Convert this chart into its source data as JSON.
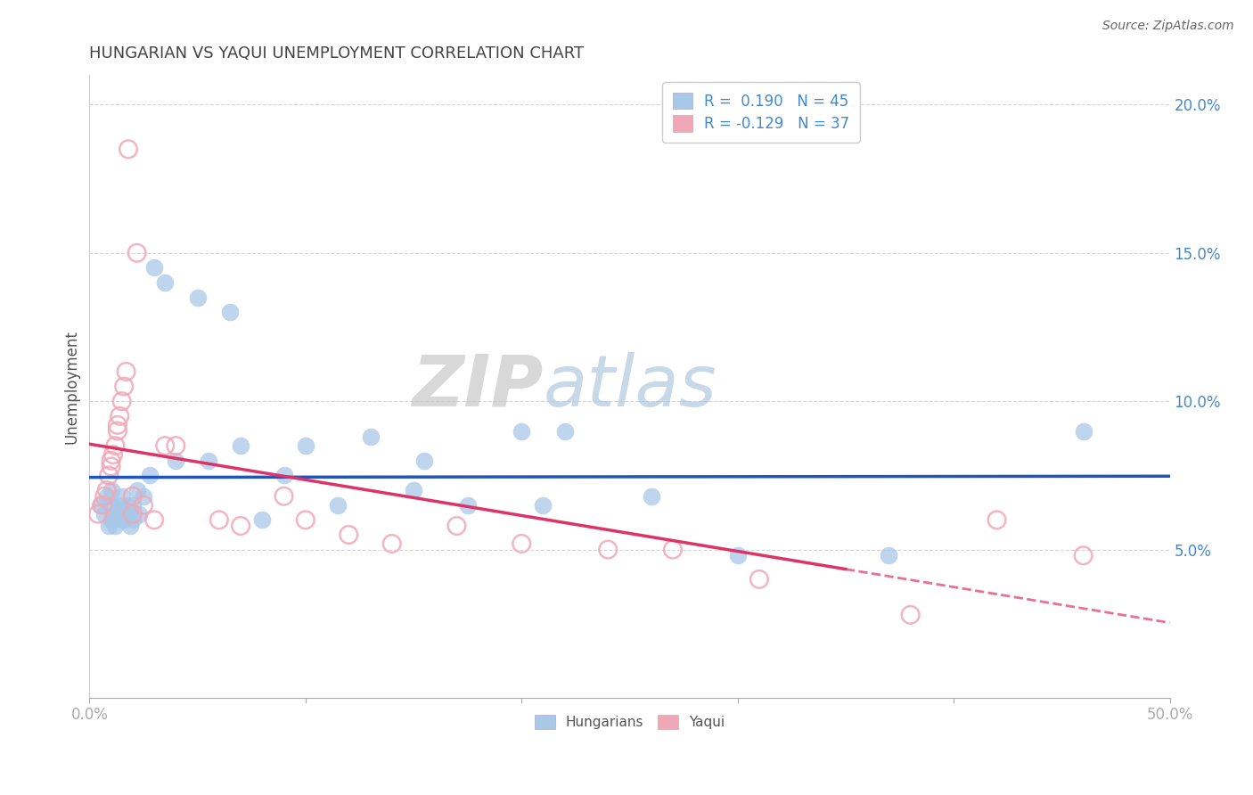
{
  "title": "HUNGARIAN VS YAQUI UNEMPLOYMENT CORRELATION CHART",
  "source": "Source: ZipAtlas.com",
  "ylabel": "Unemployment",
  "xlim": [
    0.0,
    0.5
  ],
  "ylim": [
    0.0,
    0.21
  ],
  "yticks": [
    0.05,
    0.1,
    0.15,
    0.2
  ],
  "ytick_labels": [
    "5.0%",
    "10.0%",
    "15.0%",
    "20.0%"
  ],
  "xticks": [
    0.0,
    0.1,
    0.2,
    0.3,
    0.4,
    0.5
  ],
  "xtick_labels": [
    "0.0%",
    "",
    "",
    "",
    "",
    "50.0%"
  ],
  "hungarian_color": "#a8c8e8",
  "yaqui_color": "#f0a8b8",
  "hungarian_line_color": "#2255bb",
  "yaqui_line_color": "#dd3366",
  "background_color": "#ffffff",
  "grid_color": "#cccccc",
  "blue_r": 0.19,
  "blue_n": 45,
  "pink_r": -0.129,
  "pink_n": 37,
  "hungarian_x": [
    0.005,
    0.007,
    0.008,
    0.009,
    0.01,
    0.01,
    0.01,
    0.011,
    0.012,
    0.013,
    0.014,
    0.015,
    0.015,
    0.016,
    0.017,
    0.018,
    0.019,
    0.02,
    0.02,
    0.022,
    0.023,
    0.025,
    0.028,
    0.03,
    0.035,
    0.04,
    0.05,
    0.055,
    0.065,
    0.07,
    0.08,
    0.09,
    0.1,
    0.115,
    0.13,
    0.15,
    0.155,
    0.175,
    0.2,
    0.21,
    0.22,
    0.26,
    0.3,
    0.37,
    0.46
  ],
  "hungarian_y": [
    0.065,
    0.062,
    0.068,
    0.058,
    0.06,
    0.065,
    0.07,
    0.06,
    0.058,
    0.063,
    0.065,
    0.06,
    0.068,
    0.06,
    0.062,
    0.065,
    0.058,
    0.06,
    0.065,
    0.07,
    0.062,
    0.068,
    0.075,
    0.145,
    0.14,
    0.08,
    0.135,
    0.08,
    0.13,
    0.085,
    0.06,
    0.075,
    0.085,
    0.065,
    0.088,
    0.07,
    0.08,
    0.065,
    0.09,
    0.065,
    0.09,
    0.068,
    0.048,
    0.048,
    0.09
  ],
  "yaqui_x": [
    0.004,
    0.006,
    0.007,
    0.008,
    0.009,
    0.01,
    0.01,
    0.011,
    0.012,
    0.013,
    0.013,
    0.014,
    0.015,
    0.016,
    0.017,
    0.018,
    0.02,
    0.02,
    0.022,
    0.025,
    0.03,
    0.035,
    0.04,
    0.06,
    0.07,
    0.09,
    0.1,
    0.12,
    0.14,
    0.17,
    0.2,
    0.24,
    0.27,
    0.31,
    0.38,
    0.42,
    0.46
  ],
  "yaqui_y": [
    0.062,
    0.065,
    0.068,
    0.07,
    0.075,
    0.078,
    0.08,
    0.082,
    0.085,
    0.09,
    0.092,
    0.095,
    0.1,
    0.105,
    0.11,
    0.185,
    0.062,
    0.068,
    0.15,
    0.065,
    0.06,
    0.085,
    0.085,
    0.06,
    0.058,
    0.068,
    0.06,
    0.055,
    0.052,
    0.058,
    0.052,
    0.05,
    0.05,
    0.04,
    0.028,
    0.06,
    0.048
  ]
}
